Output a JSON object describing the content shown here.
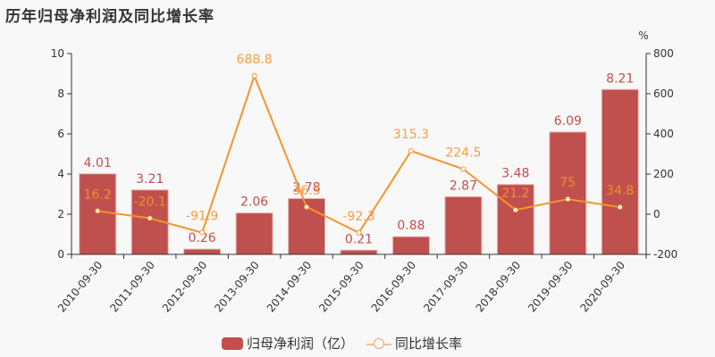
{
  "title": "历年归母净利润及同比增长率",
  "legend": {
    "bar_label": "归母净利润（亿）",
    "line_label": "同比增长率"
  },
  "colors": {
    "bar": "#c0504d",
    "line": "#f7932e",
    "text": "#333333"
  },
  "chart_data": {
    "type": "bar+line",
    "title": "历年归母净利润及同比增长率",
    "categories": [
      "2010-09-30",
      "2011-09-30",
      "2012-09-30",
      "2013-09-30",
      "2014-09-30",
      "2015-09-30",
      "2016-09-30",
      "2017-09-30",
      "2018-09-30",
      "2019-09-30",
      "2020-09-30"
    ],
    "series": [
      {
        "name": "归母净利润（亿）",
        "type": "bar",
        "axis": "left",
        "values": [
          4.01,
          3.21,
          0.26,
          2.06,
          2.78,
          0.21,
          0.88,
          2.87,
          3.48,
          6.09,
          8.21
        ]
      },
      {
        "name": "同比增长率",
        "type": "line",
        "axis": "right",
        "values": [
          16.2,
          -20.1,
          -91.9,
          688.8,
          36.3,
          -92.3,
          315.3,
          224.5,
          21.2,
          75,
          34.8
        ]
      }
    ],
    "left_axis": {
      "ylim": [
        0,
        10
      ],
      "ticks": [
        0,
        2,
        4,
        6,
        8,
        10
      ]
    },
    "right_axis": {
      "label": "%",
      "ylim": [
        -200,
        800
      ],
      "ticks": [
        -200,
        0,
        200,
        400,
        600,
        800
      ]
    },
    "grid": false,
    "legend_position": "bottom"
  }
}
